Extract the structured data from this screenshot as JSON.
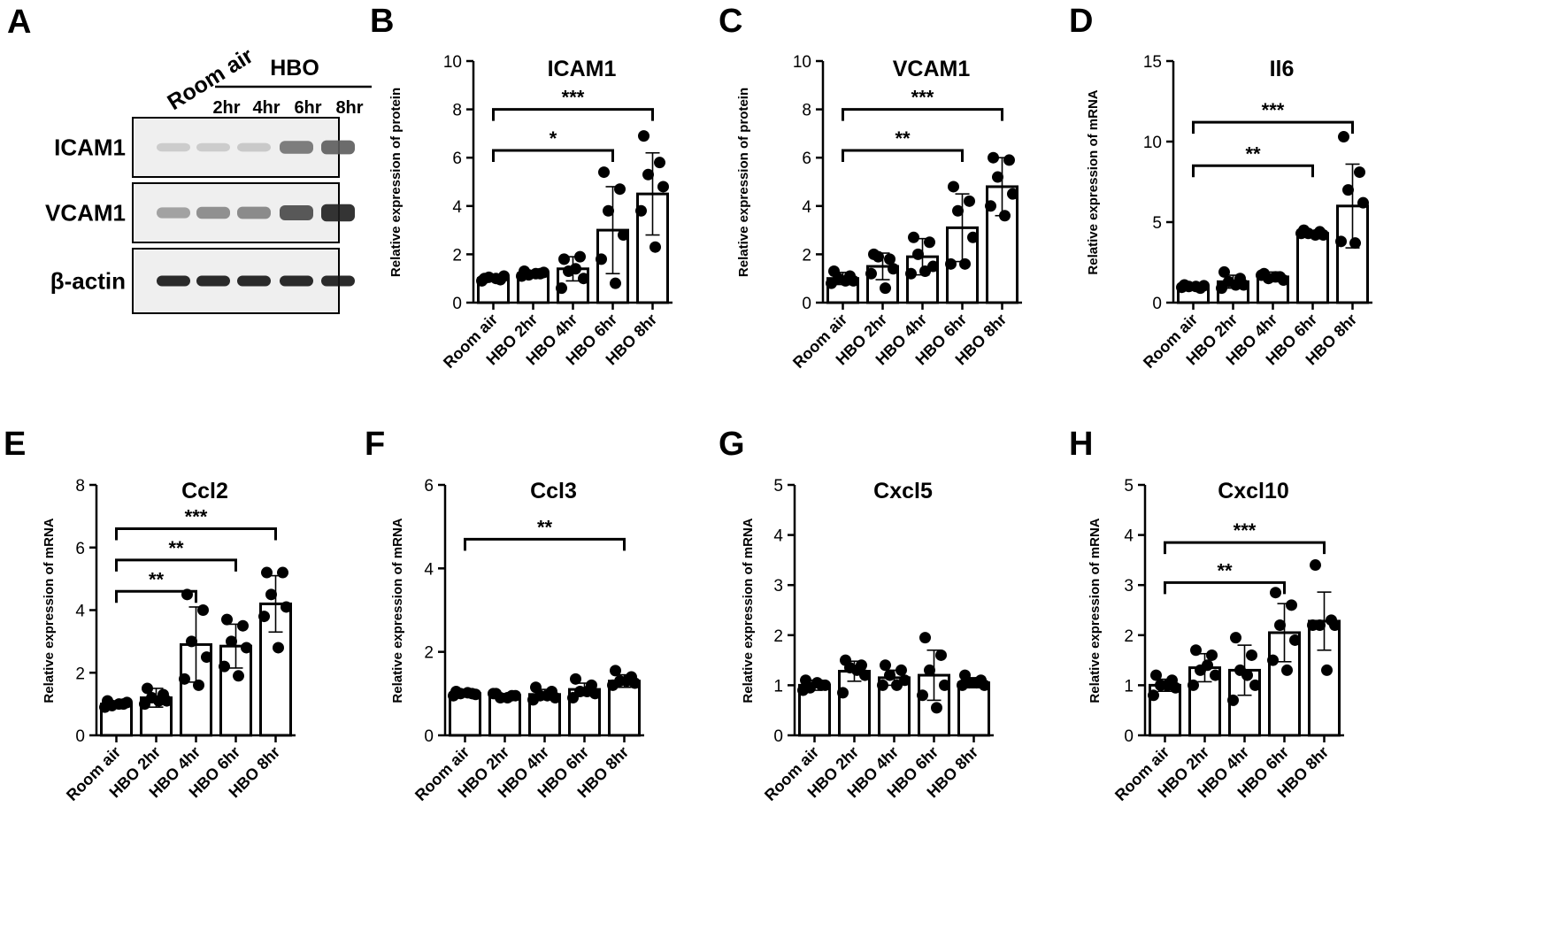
{
  "blot": {
    "panel_label": "A",
    "room_air_label": "Room air",
    "hbo_label": "HBO",
    "time_labels": [
      "2hr",
      "4hr",
      "6hr",
      "8hr"
    ],
    "rows": [
      {
        "name": "ICAM1",
        "intensity": [
          0.12,
          0.12,
          0.14,
          0.55,
          0.65
        ]
      },
      {
        "name": "VCAM1",
        "intensity": [
          0.35,
          0.45,
          0.48,
          0.75,
          0.95
        ]
      },
      {
        "name": "β-actin",
        "intensity": [
          1.0,
          1.0,
          1.0,
          1.0,
          1.0
        ]
      }
    ]
  },
  "chart_data": [
    {
      "type": "bar",
      "panel_label": "B",
      "title": "ICAM1",
      "ylabel": "Relative expression of  protein",
      "categories": [
        "Room air",
        "HBO 2hr",
        "HBO 4hr",
        "HBO 6hr",
        "HBO 8hr"
      ],
      "ylim": [
        0,
        10
      ],
      "yticks": [
        0,
        2,
        4,
        6,
        8,
        10
      ],
      "means": [
        1.0,
        1.2,
        1.4,
        3.0,
        4.5
      ],
      "sd": [
        0.1,
        0.1,
        0.5,
        1.8,
        1.7
      ],
      "points": [
        [
          1.0,
          0.95,
          1.05,
          1.1,
          0.9,
          1.0
        ],
        [
          1.3,
          1.2,
          1.15,
          1.25,
          1.1,
          1.2
        ],
        [
          1.8,
          1.9,
          1.3,
          1.0,
          0.6,
          1.4
        ],
        [
          5.4,
          4.7,
          3.8,
          2.8,
          1.8,
          0.8
        ],
        [
          6.9,
          5.8,
          5.3,
          4.8,
          3.8,
          2.3
        ]
      ],
      "significance": [
        {
          "from": 0,
          "to": 4,
          "label": "***",
          "y": 8.0
        },
        {
          "from": 0,
          "to": 3,
          "label": "*",
          "y": 6.3
        }
      ]
    },
    {
      "type": "bar",
      "panel_label": "C",
      "title": "VCAM1",
      "ylabel": "Relative expression of  protein",
      "categories": [
        "Room air",
        "HBO 2hr",
        "HBO 4hr",
        "HBO 6hr",
        "HBO 8hr"
      ],
      "ylim": [
        0,
        10
      ],
      "yticks": [
        0,
        2,
        4,
        6,
        8,
        10
      ],
      "means": [
        1.0,
        1.5,
        1.9,
        3.1,
        4.8
      ],
      "sd": [
        0.25,
        0.55,
        0.75,
        1.4,
        1.2
      ],
      "points": [
        [
          1.3,
          1.1,
          1.0,
          0.9,
          0.8,
          0.9
        ],
        [
          2.0,
          1.8,
          1.9,
          1.4,
          1.2,
          0.6
        ],
        [
          2.7,
          2.5,
          2.0,
          1.5,
          1.2,
          1.3
        ],
        [
          4.8,
          4.2,
          3.8,
          2.7,
          1.6,
          1.6
        ],
        [
          6.0,
          5.9,
          5.2,
          4.5,
          4.0,
          3.6
        ]
      ],
      "significance": [
        {
          "from": 0,
          "to": 4,
          "label": "***",
          "y": 8.0
        },
        {
          "from": 0,
          "to": 3,
          "label": "**",
          "y": 6.3
        }
      ]
    },
    {
      "type": "bar",
      "panel_label": "D",
      "title": "Il6",
      "ylabel": "Relative expression of  mRNA",
      "categories": [
        "Room air",
        "HBO 2hr",
        "HBO 4hr",
        "HBO 6hr",
        "HBO 8hr"
      ],
      "ylim": [
        0,
        15
      ],
      "yticks": [
        0,
        5,
        10,
        15
      ],
      "means": [
        1.0,
        1.3,
        1.6,
        4.3,
        6.0
      ],
      "sd": [
        0.15,
        0.4,
        0.3,
        0.1,
        2.6
      ],
      "points": [
        [
          1.1,
          0.9,
          1.0,
          1.05,
          0.95,
          1.0
        ],
        [
          1.9,
          1.5,
          1.3,
          1.1,
          0.9,
          1.1
        ],
        [
          1.8,
          1.6,
          1.5,
          1.4,
          1.7,
          1.6
        ],
        [
          4.5,
          4.4,
          4.3,
          4.2,
          4.3,
          4.2
        ],
        [
          10.3,
          8.1,
          7.0,
          6.2,
          3.8,
          3.7
        ]
      ],
      "significance": [
        {
          "from": 0,
          "to": 4,
          "label": "***",
          "y": 11.2
        },
        {
          "from": 0,
          "to": 3,
          "label": "**",
          "y": 8.5
        }
      ]
    },
    {
      "type": "bar",
      "panel_label": "E",
      "title": "Ccl2",
      "ylabel": "Relative expression of  mRNA",
      "categories": [
        "Room air",
        "HBO 2hr",
        "HBO 4hr",
        "HBO 6hr",
        "HBO 8hr"
      ],
      "ylim": [
        0,
        8
      ],
      "yticks": [
        0,
        2,
        4,
        6,
        8
      ],
      "means": [
        1.0,
        1.2,
        2.9,
        2.85,
        4.2
      ],
      "sd": [
        0.1,
        0.3,
        1.2,
        0.7,
        0.9
      ],
      "points": [
        [
          1.1,
          1.0,
          0.95,
          1.05,
          0.9,
          1.0
        ],
        [
          1.5,
          1.3,
          1.2,
          1.1,
          1.0,
          1.1
        ],
        [
          4.5,
          4.0,
          3.0,
          2.5,
          1.8,
          1.6
        ],
        [
          3.7,
          3.5,
          3.0,
          2.8,
          2.2,
          1.9
        ],
        [
          5.2,
          5.2,
          4.5,
          4.1,
          3.8,
          2.8
        ]
      ],
      "significance": [
        {
          "from": 0,
          "to": 4,
          "label": "***",
          "y": 6.6
        },
        {
          "from": 0,
          "to": 3,
          "label": "**",
          "y": 5.6
        },
        {
          "from": 0,
          "to": 2,
          "label": "**",
          "y": 4.6
        }
      ]
    },
    {
      "type": "bar",
      "panel_label": "F",
      "title": "Ccl3",
      "ylabel": "Relative expression of  mRNA",
      "categories": [
        "Room air",
        "HBO 2hr",
        "HBO 4hr",
        "HBO 6hr",
        "HBO 8hr"
      ],
      "ylim": [
        0,
        6
      ],
      "yticks": [
        0,
        2,
        4,
        6
      ],
      "means": [
        1.0,
        0.95,
        0.98,
        1.1,
        1.3
      ],
      "sd": [
        0.05,
        0.05,
        0.12,
        0.15,
        0.15
      ],
      "points": [
        [
          1.05,
          1.0,
          1.0,
          0.98,
          0.95,
          1.02
        ],
        [
          1.0,
          0.95,
          0.9,
          0.95,
          1.0,
          0.9
        ],
        [
          1.15,
          1.05,
          0.95,
          0.9,
          0.85,
          0.95
        ],
        [
          1.35,
          1.2,
          1.05,
          1.0,
          0.9,
          1.05
        ],
        [
          1.55,
          1.4,
          1.3,
          1.25,
          1.2,
          1.3
        ]
      ],
      "significance": [
        {
          "from": 0,
          "to": 4,
          "label": "**",
          "y": 4.7
        }
      ]
    },
    {
      "type": "bar",
      "panel_label": "G",
      "title": "Cxcl5",
      "ylabel": "Relative expression of  mRNA",
      "categories": [
        "Room air",
        "HBO 2hr",
        "HBO 4hr",
        "HBO 6hr",
        "HBO 8hr"
      ],
      "ylim": [
        0,
        5
      ],
      "yticks": [
        0,
        1,
        2,
        3,
        4,
        5
      ],
      "means": [
        1.0,
        1.28,
        1.15,
        1.2,
        1.05
      ],
      "sd": [
        0.1,
        0.2,
        0.15,
        0.5,
        0.1
      ],
      "points": [
        [
          1.1,
          1.0,
          0.95,
          1.0,
          0.9,
          1.05
        ],
        [
          1.5,
          1.4,
          1.35,
          1.2,
          0.85,
          1.3
        ],
        [
          1.4,
          1.3,
          1.2,
          1.1,
          1.0,
          1.0
        ],
        [
          1.95,
          1.6,
          1.3,
          1.0,
          0.8,
          0.55
        ],
        [
          1.2,
          1.1,
          1.05,
          1.0,
          1.0,
          1.05
        ]
      ],
      "significance": []
    },
    {
      "type": "bar",
      "panel_label": "H",
      "title": "Cxcl10",
      "ylabel": "Relative expression of  mRNA",
      "categories": [
        "Room air",
        "HBO 2hr",
        "HBO 4hr",
        "HBO 6hr",
        "HBO 8hr"
      ],
      "ylim": [
        0,
        5
      ],
      "yticks": [
        0,
        1,
        2,
        3,
        4,
        5
      ],
      "means": [
        1.0,
        1.35,
        1.3,
        2.05,
        2.28
      ],
      "sd": [
        0.12,
        0.28,
        0.5,
        0.58,
        0.58
      ],
      "points": [
        [
          1.2,
          1.1,
          1.0,
          0.95,
          0.8,
          1.0
        ],
        [
          1.7,
          1.6,
          1.3,
          1.2,
          1.0,
          1.4
        ],
        [
          1.95,
          1.6,
          1.3,
          1.0,
          0.7,
          1.2
        ],
        [
          2.85,
          2.6,
          2.2,
          1.9,
          1.5,
          1.3
        ],
        [
          3.4,
          2.3,
          2.2,
          2.2,
          2.2,
          1.3
        ]
      ],
      "significance": [
        {
          "from": 0,
          "to": 4,
          "label": "***",
          "y": 3.85
        },
        {
          "from": 0,
          "to": 3,
          "label": "**",
          "y": 3.05
        }
      ]
    }
  ]
}
